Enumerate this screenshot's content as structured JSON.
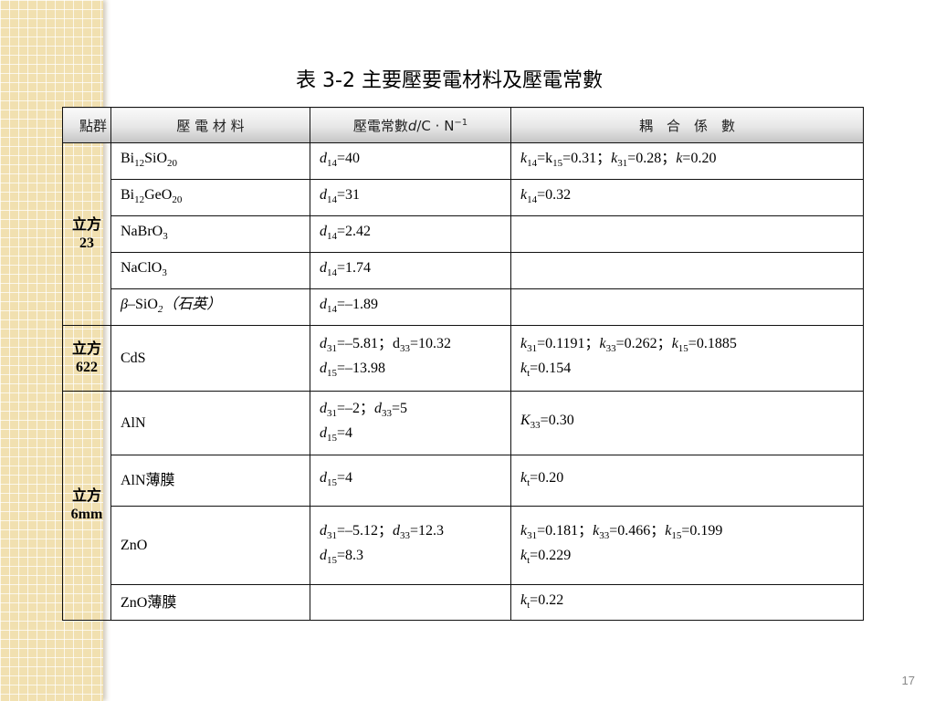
{
  "title": "表  3-2  主要壓要電材料及壓電常數",
  "page_number": "17",
  "headers": {
    "point_group": "點群",
    "material": "壓 電 材 料",
    "d_const": [
      [
        "壓電常數",
        ""
      ],
      [
        "d",
        "i"
      ],
      [
        "/C · N",
        ""
      ],
      [
        "−1",
        "sup"
      ]
    ],
    "coupling": "耦　合　係　數"
  },
  "groups": [
    {
      "label": "立方",
      "value": "23",
      "rows": 5
    },
    {
      "label": "立方",
      "value": "622",
      "rows": 1
    },
    {
      "label": "立方",
      "value": "6mm",
      "rows": 4
    }
  ],
  "rows": [
    {
      "h": 40,
      "material": [
        [
          [
            "Bi",
            ""
          ],
          [
            "12",
            "s"
          ],
          [
            "SiO",
            ""
          ],
          [
            "20",
            "s"
          ]
        ]
      ],
      "d": [
        [
          [
            "d",
            "i"
          ],
          [
            "14",
            "s"
          ],
          [
            "=40",
            ""
          ]
        ]
      ],
      "k": [
        [
          [
            "k",
            "i"
          ],
          [
            "14",
            "s"
          ],
          [
            "=k",
            ""
          ],
          [
            "15",
            "s"
          ],
          [
            "=0.31；",
            ""
          ],
          [
            "k",
            "i"
          ],
          [
            "31",
            "s"
          ],
          [
            "=0.28；",
            ""
          ],
          [
            "k",
            "i"
          ],
          [
            "=0.20",
            ""
          ]
        ]
      ]
    },
    {
      "h": 40,
      "material": [
        [
          [
            "Bi",
            ""
          ],
          [
            "12",
            "s"
          ],
          [
            "GeO",
            ""
          ],
          [
            "20",
            "s"
          ]
        ]
      ],
      "d": [
        [
          [
            "d",
            "i"
          ],
          [
            "14",
            "s"
          ],
          [
            "=31",
            ""
          ]
        ]
      ],
      "k": [
        [
          [
            "k",
            "i"
          ],
          [
            "14",
            "s"
          ],
          [
            "=0.32",
            ""
          ]
        ]
      ]
    },
    {
      "h": 40,
      "material": [
        [
          [
            "NaBrO",
            ""
          ],
          [
            "3",
            "s"
          ]
        ]
      ],
      "d": [
        [
          [
            "d",
            "i"
          ],
          [
            "14",
            "s"
          ],
          [
            "=2.42",
            ""
          ]
        ]
      ],
      "k": []
    },
    {
      "h": 40,
      "material": [
        [
          [
            "NaClO",
            ""
          ],
          [
            "3",
            "s"
          ]
        ]
      ],
      "d": [
        [
          [
            "d",
            "i"
          ],
          [
            "14",
            "s"
          ],
          [
            "=1.74",
            ""
          ]
        ]
      ],
      "k": []
    },
    {
      "h": 40,
      "material": [
        [
          [
            "β",
            "i"
          ],
          [
            "–SiO",
            ""
          ],
          [
            "2",
            "is"
          ],
          [
            "（石英）",
            "i"
          ]
        ]
      ],
      "d": [
        [
          [
            "d",
            "i"
          ],
          [
            "14",
            "s"
          ],
          [
            "=–1.89",
            ""
          ]
        ]
      ],
      "k": []
    },
    {
      "h": 72,
      "material": [
        [
          [
            "CdS",
            ""
          ]
        ]
      ],
      "d": [
        [
          [
            "d",
            "i"
          ],
          [
            "31",
            "s"
          ],
          [
            "=–5.81；d",
            ""
          ],
          [
            "33",
            "s"
          ],
          [
            "=10.32",
            ""
          ]
        ],
        [
          [
            "d",
            "i"
          ],
          [
            "15",
            "s"
          ],
          [
            "=–13.98",
            ""
          ]
        ]
      ],
      "k": [
        [
          [
            "k",
            "i"
          ],
          [
            "31",
            "s"
          ],
          [
            "=0.1191；",
            ""
          ],
          [
            "k",
            "i"
          ],
          [
            "33",
            "s"
          ],
          [
            "=0.262；",
            ""
          ],
          [
            "k",
            "i"
          ],
          [
            "15",
            "s"
          ],
          [
            "=0.1885",
            ""
          ]
        ],
        [
          [
            "k",
            "i"
          ],
          [
            "t",
            "s"
          ],
          [
            "=0.154",
            ""
          ]
        ]
      ]
    },
    {
      "h": 70,
      "material": [
        [
          [
            "AlN",
            ""
          ]
        ]
      ],
      "d": [
        [
          [
            "d",
            "i"
          ],
          [
            "31",
            "s"
          ],
          [
            "=–2；",
            ""
          ],
          [
            "d",
            "i"
          ],
          [
            "33",
            "s"
          ],
          [
            "=5",
            ""
          ]
        ],
        [
          [
            "d",
            "i"
          ],
          [
            "15",
            "s"
          ],
          [
            "=4",
            ""
          ]
        ]
      ],
      "k": [
        [
          [
            "K",
            "i"
          ],
          [
            "33",
            "s"
          ],
          [
            "=0.30",
            ""
          ]
        ]
      ]
    },
    {
      "h": 56,
      "material": [
        [
          [
            "AlN薄膜",
            ""
          ]
        ]
      ],
      "d": [
        [
          [
            "d",
            "i"
          ],
          [
            "15",
            "s"
          ],
          [
            "=4",
            ""
          ]
        ]
      ],
      "k": [
        [
          [
            "k",
            "i"
          ],
          [
            "t",
            "s"
          ],
          [
            "=0.20",
            ""
          ]
        ]
      ]
    },
    {
      "h": 86,
      "material": [
        [
          [
            "ZnO",
            ""
          ]
        ]
      ],
      "d": [
        [
          [
            "d",
            "i"
          ],
          [
            "31",
            "s"
          ],
          [
            "=–5.12；",
            ""
          ],
          [
            "d",
            "i"
          ],
          [
            "33",
            "s"
          ],
          [
            "=12.3",
            ""
          ]
        ],
        [
          [
            "d",
            "i"
          ],
          [
            "15",
            "s"
          ],
          [
            "=8.3",
            ""
          ]
        ]
      ],
      "k": [
        [
          [
            "k",
            "i"
          ],
          [
            "31",
            "s"
          ],
          [
            "=0.181；",
            ""
          ],
          [
            "k",
            "i"
          ],
          [
            "33",
            "s"
          ],
          [
            "=0.466；",
            ""
          ],
          [
            "k",
            "i"
          ],
          [
            "15",
            "s"
          ],
          [
            "=0.199",
            ""
          ]
        ],
        [
          [
            "k",
            "i"
          ],
          [
            "t",
            "s"
          ],
          [
            "=0.229",
            ""
          ]
        ]
      ]
    },
    {
      "h": 39,
      "material": [
        [
          [
            "ZnO薄膜",
            ""
          ]
        ]
      ],
      "d": [],
      "k": [
        [
          [
            "k",
            "i"
          ],
          [
            "t",
            "s"
          ],
          [
            "=0.22",
            ""
          ]
        ]
      ]
    }
  ]
}
